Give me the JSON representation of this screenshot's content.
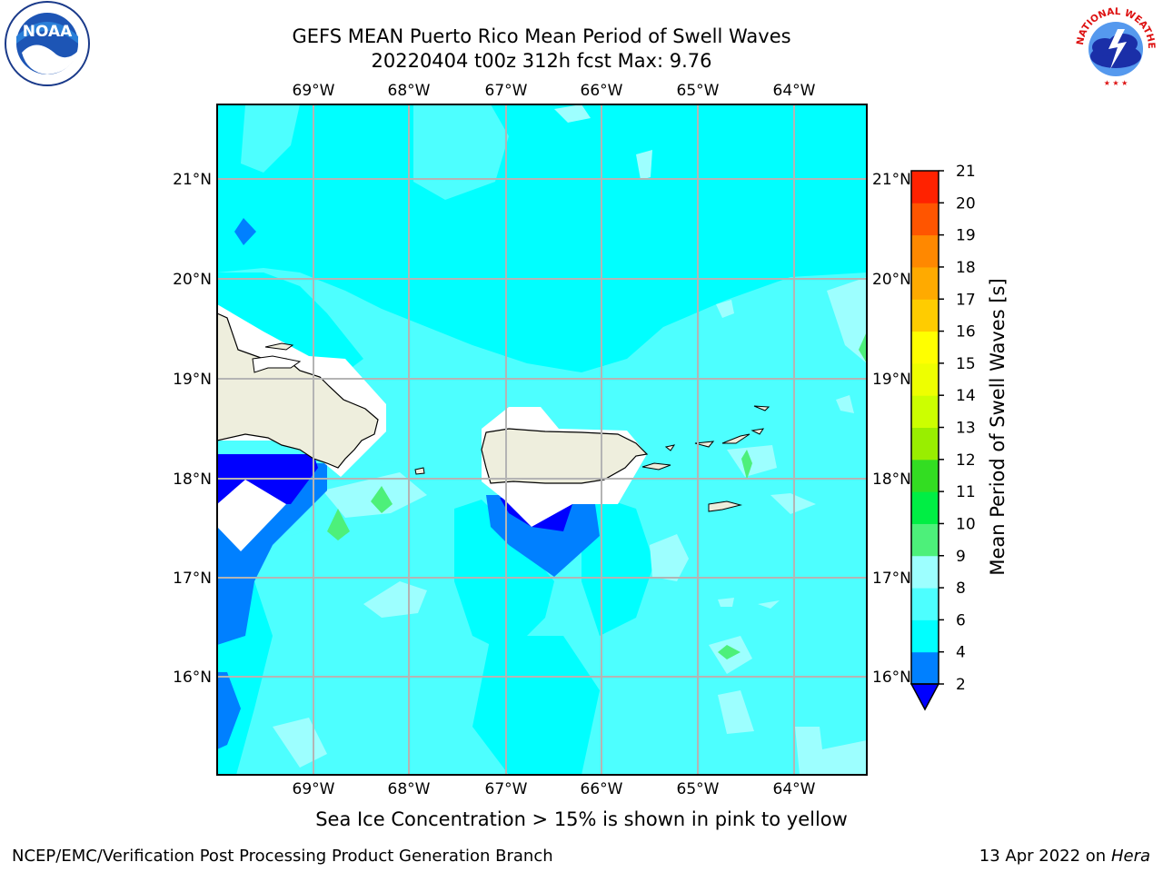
{
  "title": {
    "line1": "GEFS MEAN Puerto Rico Mean Period of Swell Waves",
    "line2": "20220404 t00z 312h fcst   Max: 9.76"
  },
  "map": {
    "lon_labels": [
      "69°W",
      "68°W",
      "67°W",
      "66°W",
      "65°W",
      "64°W"
    ],
    "lat_labels": [
      "21°N",
      "20°N",
      "19°N",
      "18°N",
      "17°N",
      "16°N"
    ],
    "land_color": "#eeeedd",
    "grid_color": "#b4b4b4"
  },
  "colorbar": {
    "label": "Mean Period of Swell Waves [s]",
    "ticks": [
      "2",
      "4",
      "6",
      "8",
      "9",
      "10",
      "11",
      "12",
      "13",
      "14",
      "15",
      "16",
      "17",
      "18",
      "19",
      "20",
      "21"
    ],
    "colors": [
      "#0000ff",
      "#0080ff",
      "#00ffff",
      "#4dffff",
      "#9dffff",
      "#4df07a",
      "#00ee44",
      "#33dd22",
      "#99ee00",
      "#ccff00",
      "#eeff00",
      "#ffff00",
      "#ffcc00",
      "#ffaa00",
      "#ff8800",
      "#ff5500",
      "#ff2200",
      "#ff0000"
    ]
  },
  "footer": {
    "note": "Sea Ice Concentration > 15% is shown in pink to yellow",
    "credit": "NCEP/EMC/Verification Post Processing Product Generation Branch",
    "date": "13 Apr 2022 on",
    "machine": "Hera"
  },
  "logos": {
    "noaa": "NOAA",
    "nws": "NATIONAL WEATHER SERVICE"
  }
}
